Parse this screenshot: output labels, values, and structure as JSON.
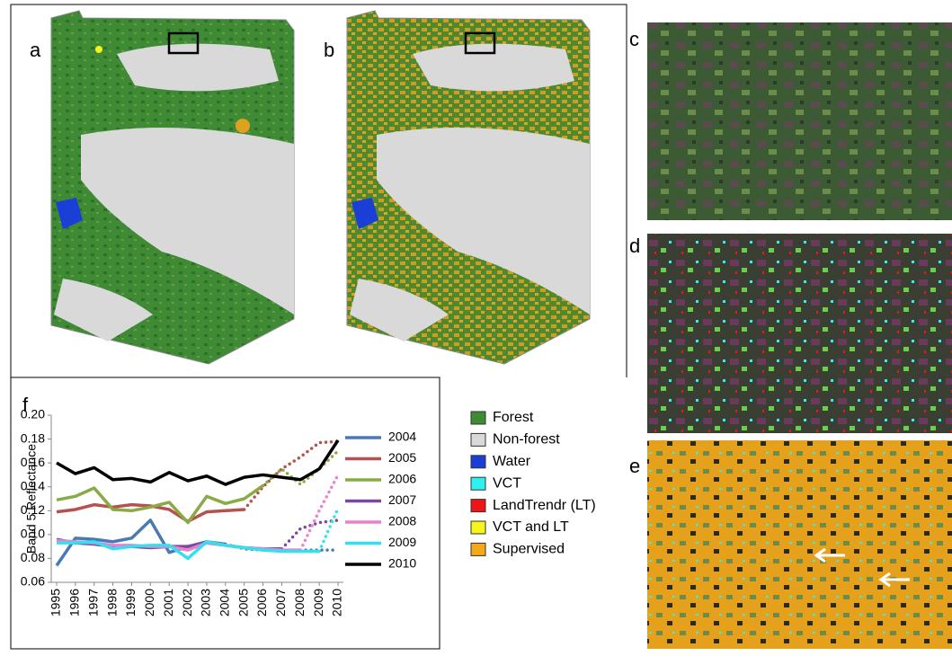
{
  "panels": {
    "a": "a",
    "b": "b",
    "c": "c",
    "d": "d",
    "e": "e",
    "f": "f"
  },
  "legend": [
    {
      "label": "Forest",
      "color": "#3f8a35"
    },
    {
      "label": "Non-forest",
      "color": "#d9d9d9"
    },
    {
      "label": "Water",
      "color": "#1a3fd6"
    },
    {
      "label": "VCT",
      "color": "#2ff0f0"
    },
    {
      "label": "LandTrendr (LT)",
      "color": "#f01515"
    },
    {
      "label": "VCT and LT",
      "color": "#f5f51a"
    },
    {
      "label": "Supervised",
      "color": "#f5a818"
    }
  ],
  "chart_data": {
    "type": "line",
    "y_label": "Band 5 Reflectance",
    "categories": [
      "1995",
      "1996",
      "1997",
      "1998",
      "1999",
      "2000",
      "2001",
      "2002",
      "2003",
      "2004",
      "2005",
      "2006",
      "2007",
      "2008",
      "2009",
      "2010"
    ],
    "ylim": [
      0.06,
      0.2
    ],
    "yticks": [
      0.06,
      0.08,
      {
        "value": 0.1,
        "label": "0.10"
      },
      0.12,
      0.14,
      0.16,
      0.18,
      {
        "value": 0.2,
        "label": "0.20"
      }
    ],
    "series": [
      {
        "name": "2004",
        "color": "#4a7ab5",
        "values": [
          0.074,
          0.097,
          0.096,
          0.094,
          0.097,
          0.112,
          0.085,
          0.09,
          0.094,
          0.092,
          0.088,
          0.087,
          0.087,
          0.087,
          0.087,
          0.087
        ]
      },
      {
        "name": "2005",
        "color": "#b5514f",
        "values": [
          0.119,
          0.121,
          0.125,
          0.123,
          0.125,
          0.124,
          0.121,
          0.111,
          0.119,
          0.12,
          0.121,
          0.14,
          0.155,
          0.165,
          0.177,
          0.178
        ]
      },
      {
        "name": "2006",
        "color": "#8aaa45",
        "values": [
          0.129,
          0.132,
          0.139,
          0.121,
          0.12,
          0.123,
          0.127,
          0.11,
          0.132,
          0.126,
          0.13,
          0.141,
          0.155,
          0.142,
          0.155,
          0.17
        ]
      },
      {
        "name": "2007",
        "color": "#7b4aa0",
        "values": [
          0.096,
          0.093,
          0.092,
          0.09,
          0.09,
          0.089,
          0.09,
          0.09,
          0.093,
          0.091,
          0.089,
          0.088,
          0.088,
          0.105,
          0.11,
          0.112
        ]
      },
      {
        "name": "2008",
        "color": "#ee7fcf",
        "values": [
          0.095,
          0.094,
          0.093,
          0.091,
          0.091,
          0.09,
          0.09,
          0.087,
          0.093,
          0.091,
          0.089,
          0.088,
          0.087,
          0.087,
          0.12,
          0.15
        ]
      },
      {
        "name": "2009",
        "color": "#33e0ef",
        "values": [
          0.093,
          0.093,
          0.094,
          0.088,
          0.09,
          0.091,
          0.091,
          0.08,
          0.094,
          0.091,
          0.089,
          0.087,
          0.086,
          0.086,
          0.086,
          0.122
        ]
      },
      {
        "name": "2010",
        "color": "#000000",
        "values": [
          0.16,
          0.151,
          0.156,
          0.146,
          0.147,
          0.144,
          0.152,
          0.145,
          0.149,
          0.142,
          0.148,
          0.15,
          0.148,
          0.146,
          0.155,
          0.179
        ]
      }
    ]
  }
}
